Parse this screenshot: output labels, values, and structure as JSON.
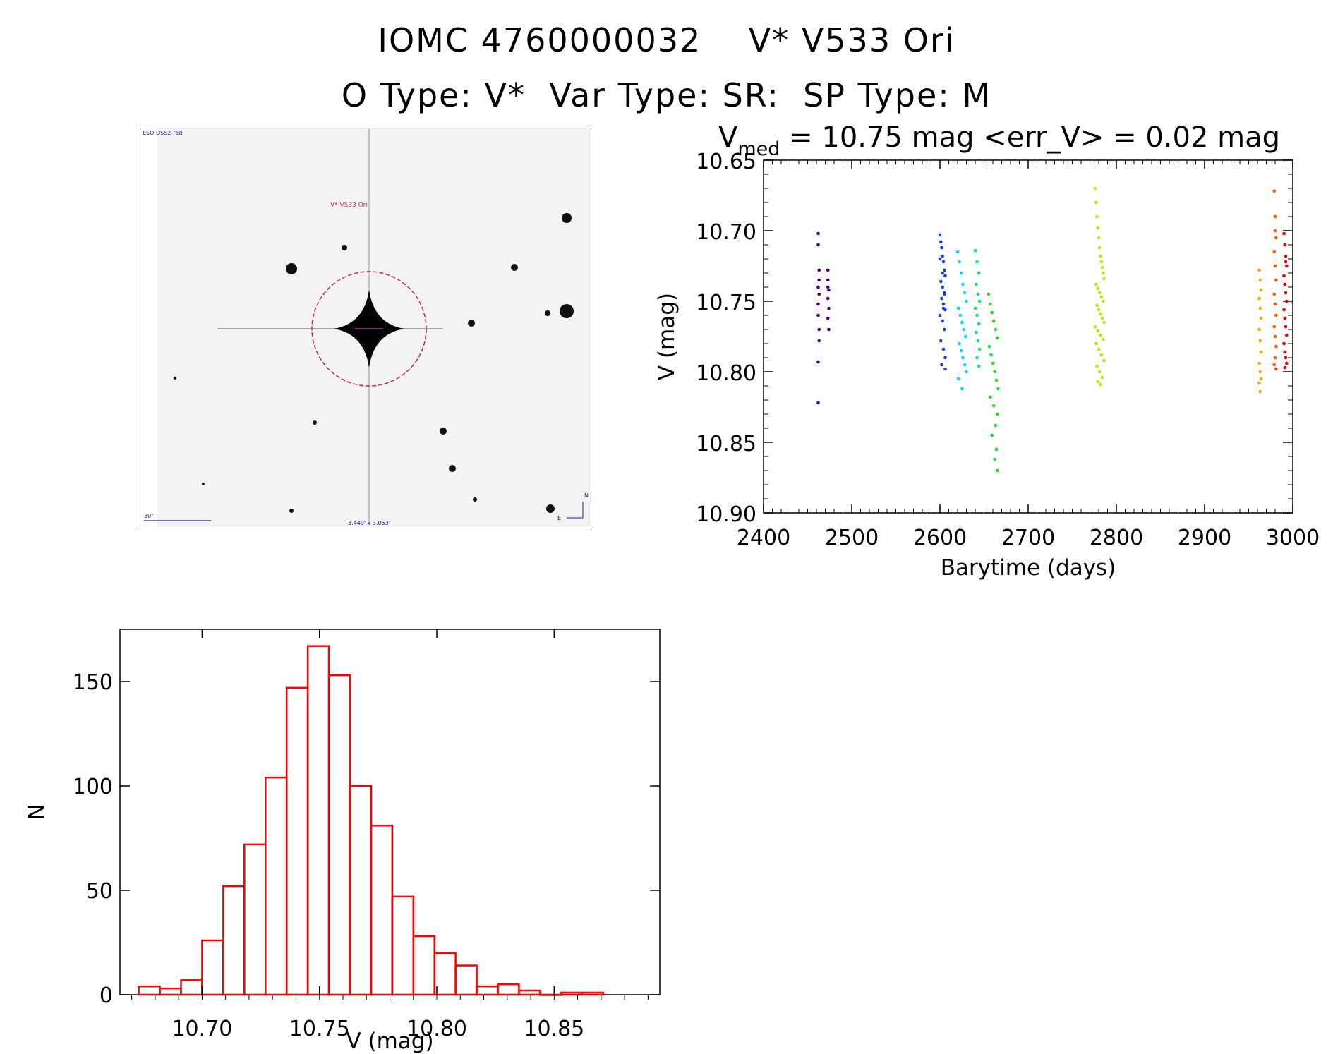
{
  "header": {
    "title_line1": "IOMC 4760000032    V* V533 Ori",
    "title_line2": "O Type: V*  Var Type: SR:  SP Type: M"
  },
  "finder_chart": {
    "survey_label": "ESO DSS2-red",
    "target_label": "V* V533 Ori",
    "scale_label": "30\"",
    "fov_label": "3.449' x 3.053'",
    "north_label": "N",
    "east_label": "E",
    "colors": {
      "marker": "#c0303a",
      "labels": "#1a1aa0",
      "background": "#f3f3f3"
    }
  },
  "chart_data": [
    {
      "type": "scatter",
      "title_prefix": "V",
      "title_subscript": "med",
      "title_rest": " = 10.75 mag <err_V> = 0.02 mag",
      "xlabel": "Barytime (days)",
      "ylabel": "V (mag)",
      "xlim": [
        2400,
        3000
      ],
      "ylim": [
        10.9,
        10.65
      ],
      "y_inverted": true,
      "x_ticks": [
        "2400",
        "2500",
        "2600",
        "2700",
        "2800",
        "2900",
        "3000"
      ],
      "y_ticks": [
        "10.65",
        "10.70",
        "10.75",
        "10.80",
        "10.85",
        "10.90"
      ],
      "series": [
        {
          "color": "#4b0082",
          "x": [
            2462,
            2462,
            2463,
            2463,
            2462,
            2463,
            2462,
            2462,
            2463,
            2463,
            2462,
            2473,
            2473,
            2474,
            2473,
            2474,
            2473,
            2474,
            2473
          ],
          "y": [
            10.702,
            10.71,
            10.728,
            10.735,
            10.74,
            10.745,
            10.752,
            10.76,
            10.77,
            10.778,
            10.793,
            10.728,
            10.735,
            10.742,
            10.748,
            10.755,
            10.762,
            10.77,
            10.74
          ]
        },
        {
          "color": "#4b0082",
          "x": [
            2462
          ],
          "y": [
            10.822
          ]
        },
        {
          "color": "#1a3cff",
          "x": [
            2600,
            2601,
            2602,
            2603,
            2604,
            2605,
            2606,
            2601,
            2603,
            2605,
            2602,
            2604,
            2606,
            2600,
            2603,
            2605,
            2601,
            2604,
            2606,
            2602,
            2600,
            2603,
            2605,
            2604,
            2606
          ],
          "y": [
            10.703,
            10.708,
            10.712,
            10.718,
            10.722,
            10.728,
            10.732,
            10.736,
            10.74,
            10.744,
            10.748,
            10.752,
            10.756,
            10.76,
            10.764,
            10.77,
            10.778,
            10.784,
            10.79,
            10.795,
            10.72,
            10.73,
            10.745,
            10.755,
            10.798
          ]
        },
        {
          "color": "#00d8ff",
          "x": [
            2620,
            2622,
            2624,
            2626,
            2628,
            2630,
            2621,
            2623,
            2625,
            2627,
            2629,
            2622,
            2624,
            2626,
            2628,
            2630,
            2621,
            2625
          ],
          "y": [
            10.715,
            10.722,
            10.73,
            10.738,
            10.744,
            10.75,
            10.755,
            10.76,
            10.765,
            10.77,
            10.775,
            10.78,
            10.785,
            10.79,
            10.795,
            10.8,
            10.805,
            10.812
          ]
        },
        {
          "color": "#00e87a",
          "x": [
            2640,
            2642,
            2644,
            2641,
            2643,
            2645,
            2640,
            2642,
            2644,
            2641,
            2643,
            2645,
            2642,
            2644
          ],
          "y": [
            10.714,
            10.722,
            10.73,
            10.738,
            10.745,
            10.75,
            10.755,
            10.76,
            10.766,
            10.772,
            10.778,
            10.784,
            10.79,
            10.796
          ]
        },
        {
          "color": "#22dd22",
          "x": [
            2655,
            2657,
            2659,
            2661,
            2663,
            2665,
            2656,
            2658,
            2660,
            2662,
            2664,
            2666,
            2657,
            2661,
            2665,
            2663,
            2659,
            2664,
            2662,
            2665
          ],
          "y": [
            10.745,
            10.752,
            10.758,
            10.764,
            10.77,
            10.776,
            10.782,
            10.788,
            10.794,
            10.8,
            10.806,
            10.812,
            10.818,
            10.824,
            10.83,
            10.838,
            10.845,
            10.855,
            10.862,
            10.87
          ]
        },
        {
          "color": "#b0f000",
          "x": [
            2776,
            2777,
            2778,
            2779,
            2780,
            2781,
            2782,
            2783,
            2784,
            2785,
            2786,
            2777,
            2779,
            2781,
            2783,
            2785,
            2778,
            2780,
            2782,
            2784,
            2786,
            2776,
            2779,
            2782,
            2785,
            2777,
            2780,
            2783,
            2786,
            2778,
            2781,
            2784,
            2779,
            2782
          ],
          "y": [
            10.67,
            10.68,
            10.69,
            10.698,
            10.705,
            10.712,
            10.718,
            10.722,
            10.726,
            10.73,
            10.734,
            10.738,
            10.741,
            10.744,
            10.747,
            10.75,
            10.753,
            10.756,
            10.759,
            10.762,
            10.765,
            10.768,
            10.771,
            10.774,
            10.777,
            10.78,
            10.784,
            10.788,
            10.792,
            10.796,
            10.8,
            10.804,
            10.807,
            10.809
          ]
        },
        {
          "color": "#ffaa00",
          "x": [
            2962,
            2963,
            2964,
            2962,
            2963,
            2964,
            2962,
            2963,
            2964,
            2962,
            2963,
            2964,
            2962,
            2963
          ],
          "y": [
            10.728,
            10.735,
            10.742,
            10.748,
            10.755,
            10.762,
            10.77,
            10.778,
            10.786,
            10.794,
            10.8,
            10.805,
            10.808,
            10.814
          ]
        },
        {
          "color": "#ff5a00",
          "x": [
            2979,
            2980,
            2981,
            2979,
            2980,
            2981,
            2979,
            2980,
            2981,
            2979,
            2980,
            2981,
            2980,
            2979,
            2981,
            2980
          ],
          "y": [
            10.672,
            10.69,
            10.705,
            10.715,
            10.725,
            10.735,
            10.745,
            10.752,
            10.76,
            10.768,
            10.775,
            10.782,
            10.79,
            10.795,
            10.798,
            10.7
          ]
        },
        {
          "color": "#e80000",
          "x": [
            2990,
            2991,
            2992,
            2993,
            2990,
            2991,
            2992,
            2993,
            2990,
            2991,
            2992,
            2993,
            2990,
            2991,
            2992,
            2993,
            2991,
            2992
          ],
          "y": [
            10.702,
            10.71,
            10.718,
            10.725,
            10.732,
            10.738,
            10.744,
            10.75,
            10.756,
            10.762,
            10.768,
            10.774,
            10.78,
            10.786,
            10.79,
            10.794,
            10.797,
            10.722
          ]
        }
      ]
    },
    {
      "type": "bar",
      "histogram": true,
      "xlabel": "V (mag)",
      "ylabel": "N",
      "xlim": [
        10.665,
        10.895
      ],
      "ylim": [
        0,
        175
      ],
      "x_ticks": [
        "10.70",
        "10.75",
        "10.80",
        "10.85"
      ],
      "y_ticks": [
        "0",
        "50",
        "100",
        "150"
      ],
      "bin_width": 0.009,
      "bin_starts": [
        10.673,
        10.682,
        10.691,
        10.7,
        10.709,
        10.718,
        10.727,
        10.736,
        10.745,
        10.754,
        10.763,
        10.772,
        10.781,
        10.79,
        10.799,
        10.808,
        10.817,
        10.826,
        10.835,
        10.844,
        10.853,
        10.862
      ],
      "values": [
        4,
        3,
        7,
        26,
        52,
        72,
        104,
        147,
        167,
        153,
        100,
        81,
        47,
        28,
        20,
        14,
        4,
        5,
        2,
        0,
        1,
        1
      ],
      "bar_color": "#ff0000"
    }
  ]
}
